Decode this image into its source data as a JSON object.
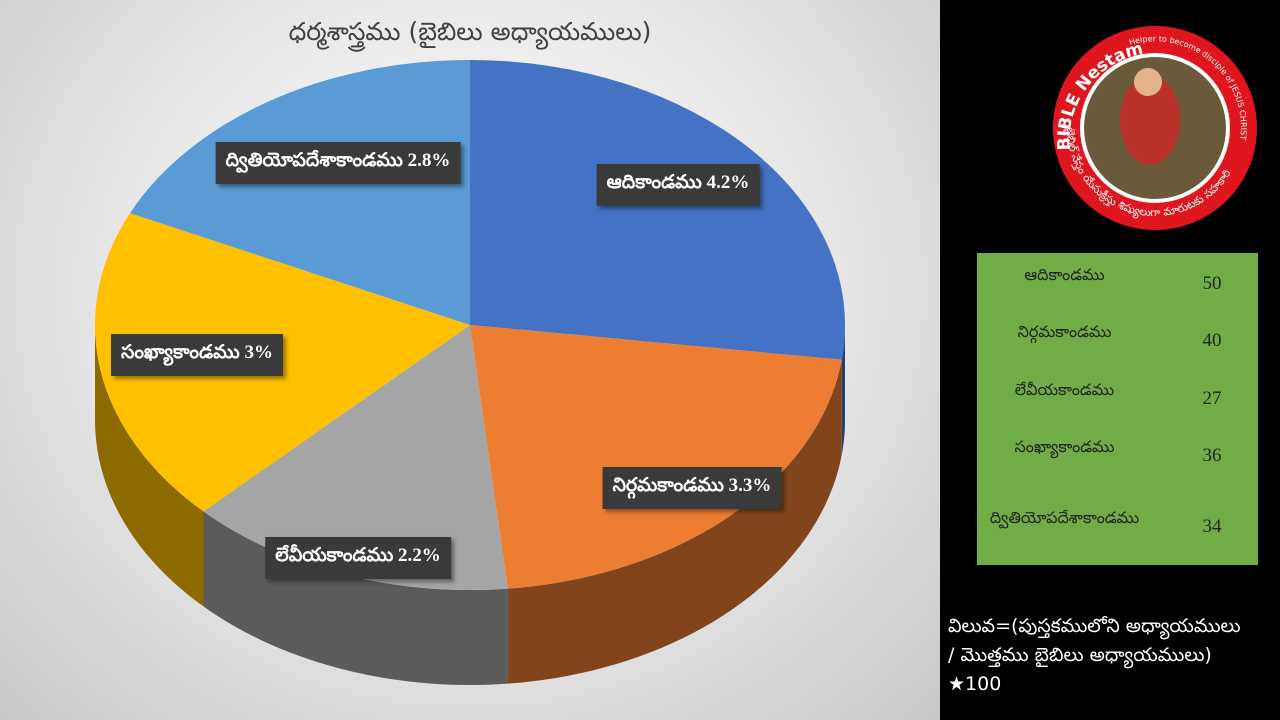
{
  "chart_data": {
    "type": "pie",
    "title": "ధర్మశాస్త్రము (బైబిలు అధ్యాయములు)",
    "categories": [
      "ఆదికాండము",
      "నిర్గమకాండము",
      "లేవీయకాండము",
      "సంఖ్యాకాండము",
      "ద్వితియోపదేశాకాండము"
    ],
    "values": [
      4.2,
      3.3,
      2.2,
      3,
      2.8
    ],
    "value_labels": [
      "4.2%",
      "3.3%",
      "2.2%",
      "3%",
      "2.8%"
    ],
    "colors": [
      "#4472c4",
      "#ed7d31",
      "#a5a5a5",
      "#ffc000",
      "#5b9bd5"
    ]
  },
  "table": {
    "rows": [
      [
        "ఆదికాండము",
        "50"
      ],
      [
        "నిర్గమకాండము",
        "40"
      ],
      [
        "లేవీయకాండము",
        "27"
      ],
      [
        "సంఖ్యాకాండము",
        "36"
      ],
      [
        "ద్వితియోపదేశాకాండము",
        "34"
      ]
    ]
  },
  "note": [
    "విలువ=(పుస్తకములోని అధ్యాయములు",
    "/ మొత్తము బైబిలు అధ్యాయములు)",
    "★100"
  ],
  "logo": {
    "name": "BIBLE Nestam",
    "tagline": "Helper to become disciple of JESUS CHRIST",
    "telugu": "బైబిల్ నేస్తం యేసుక్రీస్తు శిష్యులుగా మారుటకు సహకారి"
  }
}
